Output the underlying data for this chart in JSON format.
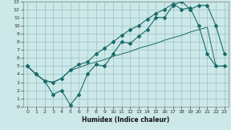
{
  "title": "",
  "xlabel": "Humidex (Indice chaleur)",
  "bg_color": "#cce8e8",
  "grid_color": "#aacccc",
  "line_color": "#1a6b6b",
  "xlim": [
    -0.5,
    23.5
  ],
  "ylim": [
    0,
    13
  ],
  "xticks": [
    0,
    1,
    2,
    3,
    4,
    5,
    6,
    7,
    8,
    9,
    10,
    11,
    12,
    13,
    14,
    15,
    16,
    17,
    18,
    19,
    20,
    21,
    22,
    23
  ],
  "yticks": [
    0,
    1,
    2,
    3,
    4,
    5,
    6,
    7,
    8,
    9,
    10,
    11,
    12,
    13
  ],
  "line1_x": [
    0,
    1,
    2,
    3,
    4,
    5,
    6,
    7,
    8,
    9,
    10,
    11,
    12,
    13,
    14,
    15,
    16,
    17,
    18,
    19,
    20,
    21,
    22,
    23
  ],
  "line1_y": [
    5.0,
    4.0,
    3.2,
    1.5,
    2.0,
    0.2,
    1.5,
    4.0,
    5.2,
    5.0,
    6.5,
    8.0,
    7.8,
    8.7,
    9.5,
    11.0,
    11.0,
    12.5,
    13.0,
    12.0,
    12.5,
    12.5,
    10.0,
    6.5
  ],
  "line2_x": [
    0,
    1,
    2,
    3,
    4,
    5,
    6,
    7,
    8,
    9,
    10,
    11,
    12,
    13,
    14,
    15,
    16,
    17,
    18,
    19,
    20,
    21,
    22,
    23
  ],
  "line2_y": [
    5.0,
    4.0,
    3.2,
    3.0,
    3.5,
    4.5,
    5.2,
    5.5,
    6.5,
    7.2,
    8.0,
    8.8,
    9.5,
    10.0,
    10.8,
    11.5,
    12.0,
    12.7,
    12.0,
    12.2,
    10.0,
    6.5,
    5.0,
    5.0
  ],
  "line3_x": [
    0,
    1,
    2,
    3,
    4,
    5,
    6,
    7,
    8,
    9,
    10,
    11,
    12,
    13,
    14,
    15,
    16,
    17,
    18,
    19,
    20,
    21,
    22,
    23
  ],
  "line3_y": [
    5.0,
    4.0,
    3.2,
    3.0,
    3.5,
    4.5,
    4.8,
    5.2,
    5.5,
    5.8,
    6.2,
    6.5,
    6.8,
    7.2,
    7.5,
    7.8,
    8.2,
    8.5,
    8.8,
    9.2,
    9.5,
    9.8,
    5.0,
    5.0
  ]
}
